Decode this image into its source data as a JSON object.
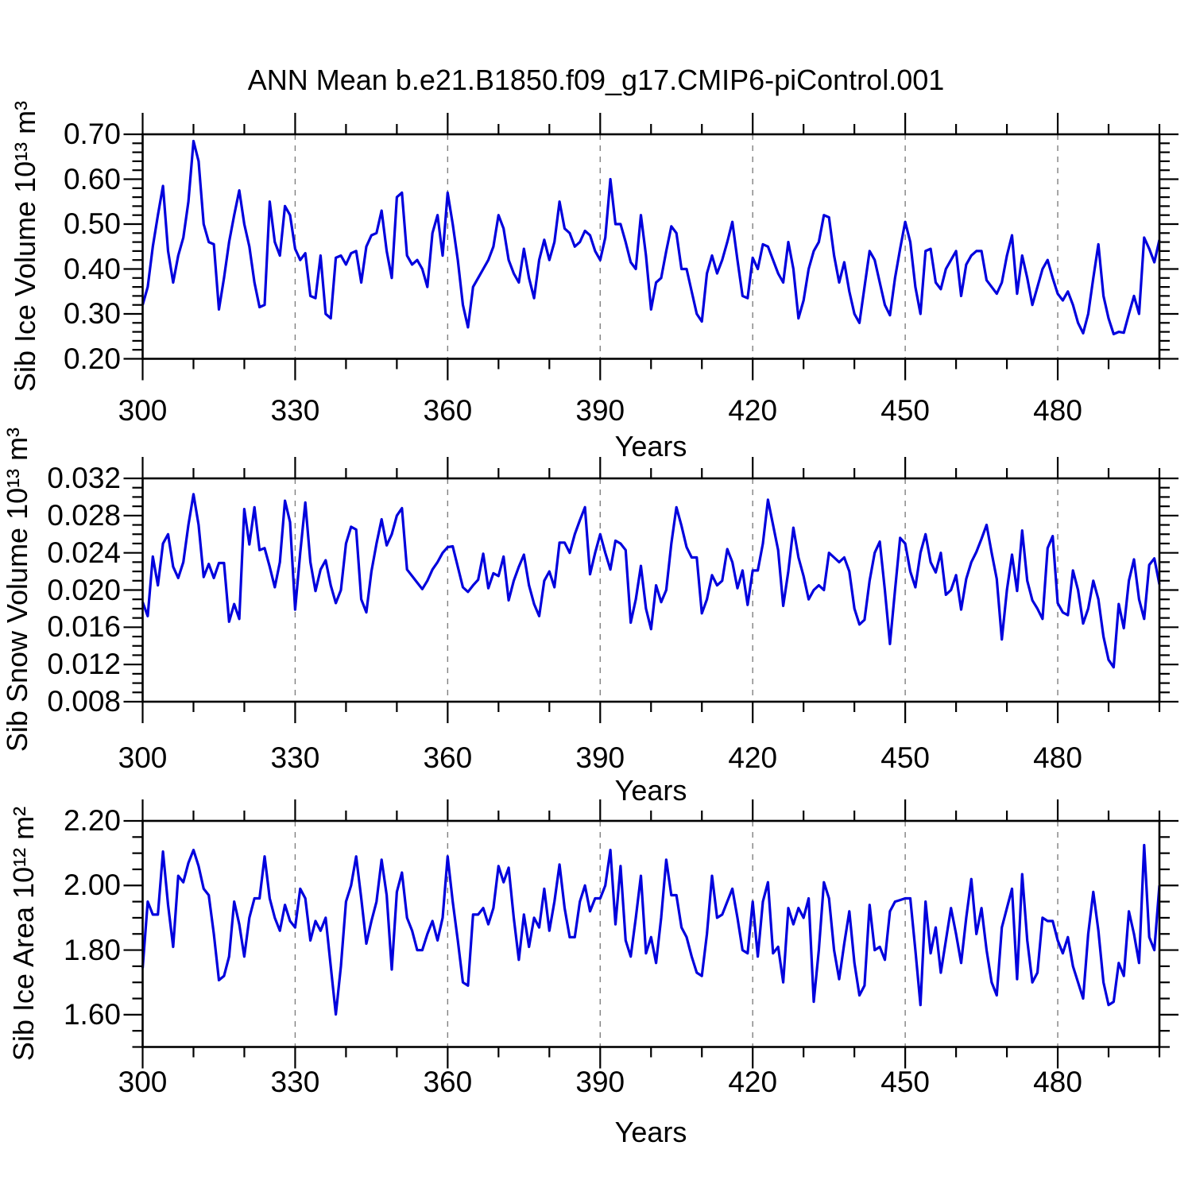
{
  "title": "ANN Mean b.e21.B1850.f09_g17.CMIP6-piControl.001",
  "line_color": "#0000dd",
  "grid_color": "#808080",
  "frame_color": "#000000",
  "chart_data": [
    {
      "type": "line",
      "name": "sib-ice-volume",
      "ylabel": "Sib Ice Volume 10¹³ m³",
      "xlabel": "Years",
      "xlim": [
        300,
        500
      ],
      "ylim": [
        0.2,
        0.7
      ],
      "x_start": 300,
      "x_step": 1,
      "x_major_ticks": [
        300,
        330,
        360,
        390,
        420,
        450,
        480
      ],
      "x_tick_labels": [
        "300",
        "330",
        "360",
        "390",
        "420",
        "450",
        "480"
      ],
      "x_minor_step": 10,
      "y_major_ticks": [
        0.2,
        0.3,
        0.4,
        0.5,
        0.6,
        0.7
      ],
      "y_tick_labels": [
        "0.20",
        "0.30",
        "0.40",
        "0.50",
        "0.60",
        "0.70"
      ],
      "y_minor_step": 0.02,
      "grid": "vertical-dashed-at-x-majors",
      "legend": "none",
      "values": [
        0.32,
        0.36,
        0.45,
        0.52,
        0.585,
        0.44,
        0.37,
        0.43,
        0.47,
        0.55,
        0.685,
        0.64,
        0.5,
        0.46,
        0.455,
        0.31,
        0.38,
        0.46,
        0.52,
        0.575,
        0.5,
        0.45,
        0.37,
        0.315,
        0.32,
        0.55,
        0.46,
        0.43,
        0.54,
        0.52,
        0.445,
        0.42,
        0.435,
        0.34,
        0.335,
        0.43,
        0.3,
        0.29,
        0.425,
        0.43,
        0.41,
        0.435,
        0.44,
        0.37,
        0.45,
        0.475,
        0.48,
        0.53,
        0.44,
        0.38,
        0.56,
        0.57,
        0.43,
        0.41,
        0.42,
        0.4,
        0.36,
        0.48,
        0.52,
        0.43,
        0.57,
        0.5,
        0.42,
        0.32,
        0.27,
        0.36,
        0.38,
        0.4,
        0.42,
        0.45,
        0.52,
        0.49,
        0.42,
        0.39,
        0.37,
        0.445,
        0.38,
        0.335,
        0.42,
        0.465,
        0.42,
        0.46,
        0.55,
        0.49,
        0.48,
        0.45,
        0.46,
        0.485,
        0.475,
        0.44,
        0.42,
        0.47,
        0.6,
        0.5,
        0.5,
        0.46,
        0.415,
        0.4,
        0.52,
        0.43,
        0.31,
        0.37,
        0.38,
        0.44,
        0.495,
        0.48,
        0.4,
        0.4,
        0.35,
        0.3,
        0.283,
        0.39,
        0.43,
        0.39,
        0.42,
        0.46,
        0.505,
        0.42,
        0.34,
        0.335,
        0.425,
        0.4,
        0.455,
        0.45,
        0.42,
        0.39,
        0.37,
        0.46,
        0.4,
        0.29,
        0.33,
        0.4,
        0.44,
        0.46,
        0.52,
        0.515,
        0.43,
        0.37,
        0.415,
        0.35,
        0.3,
        0.28,
        0.36,
        0.44,
        0.42,
        0.37,
        0.32,
        0.297,
        0.38,
        0.445,
        0.505,
        0.46,
        0.36,
        0.3,
        0.44,
        0.445,
        0.37,
        0.355,
        0.4,
        0.42,
        0.44,
        0.34,
        0.41,
        0.43,
        0.44,
        0.44,
        0.375,
        0.36,
        0.345,
        0.37,
        0.43,
        0.475,
        0.345,
        0.43,
        0.38,
        0.32,
        0.36,
        0.4,
        0.42,
        0.38,
        0.345,
        0.33,
        0.35,
        0.32,
        0.28,
        0.257,
        0.3,
        0.38,
        0.455,
        0.34,
        0.29,
        0.255,
        0.26,
        0.258,
        0.3,
        0.34,
        0.3,
        0.47,
        0.445,
        0.415,
        0.465
      ]
    },
    {
      "type": "line",
      "name": "sib-snow-volume",
      "ylabel": "Sib Snow Volume 10¹³ m³",
      "xlabel": "Years",
      "xlim": [
        300,
        500
      ],
      "ylim": [
        0.008,
        0.032
      ],
      "x_start": 300,
      "x_step": 1,
      "x_major_ticks": [
        300,
        330,
        360,
        390,
        420,
        450,
        480
      ],
      "x_tick_labels": [
        "300",
        "330",
        "360",
        "390",
        "420",
        "450",
        "480"
      ],
      "x_minor_step": 10,
      "y_major_ticks": [
        0.008,
        0.012,
        0.016,
        0.02,
        0.024,
        0.028,
        0.032
      ],
      "y_tick_labels": [
        "0.008",
        "0.012",
        "0.016",
        "0.020",
        "0.024",
        "0.028",
        "0.032"
      ],
      "y_minor_step": 0.001,
      "grid": "vertical-dashed-at-x-majors",
      "legend": "none",
      "values": [
        0.0187,
        0.0172,
        0.0236,
        0.0205,
        0.025,
        0.026,
        0.0225,
        0.0213,
        0.023,
        0.027,
        0.0303,
        0.027,
        0.0214,
        0.0228,
        0.0213,
        0.0229,
        0.0229,
        0.0166,
        0.0185,
        0.0169,
        0.0287,
        0.0249,
        0.0289,
        0.0243,
        0.0245,
        0.0225,
        0.0203,
        0.023,
        0.0296,
        0.0273,
        0.0179,
        0.024,
        0.0294,
        0.023,
        0.0199,
        0.0222,
        0.0232,
        0.0205,
        0.0186,
        0.02,
        0.025,
        0.0268,
        0.0265,
        0.019,
        0.0176,
        0.022,
        0.025,
        0.0276,
        0.0248,
        0.026,
        0.028,
        0.0288,
        0.0222,
        0.0215,
        0.0208,
        0.0201,
        0.021,
        0.0222,
        0.023,
        0.024,
        0.0246,
        0.0247,
        0.0225,
        0.0203,
        0.0198,
        0.0205,
        0.0211,
        0.0239,
        0.0202,
        0.0218,
        0.0215,
        0.0236,
        0.0189,
        0.021,
        0.0225,
        0.0238,
        0.0205,
        0.0185,
        0.0172,
        0.021,
        0.022,
        0.0203,
        0.0251,
        0.0251,
        0.024,
        0.026,
        0.0275,
        0.0289,
        0.0217,
        0.024,
        0.026,
        0.024,
        0.0222,
        0.0253,
        0.025,
        0.0243,
        0.0165,
        0.019,
        0.0226,
        0.018,
        0.0158,
        0.0205,
        0.0187,
        0.02,
        0.025,
        0.0289,
        0.0269,
        0.0246,
        0.0235,
        0.0235,
        0.0175,
        0.019,
        0.0216,
        0.0205,
        0.021,
        0.0244,
        0.023,
        0.0202,
        0.0221,
        0.0184,
        0.0221,
        0.0221,
        0.025,
        0.0297,
        0.027,
        0.0243,
        0.0183,
        0.022,
        0.0267,
        0.0235,
        0.0215,
        0.019,
        0.02,
        0.0205,
        0.02,
        0.024,
        0.0235,
        0.023,
        0.0235,
        0.022,
        0.018,
        0.0163,
        0.0168,
        0.021,
        0.024,
        0.0252,
        0.02,
        0.0142,
        0.02,
        0.0256,
        0.025,
        0.022,
        0.0203,
        0.024,
        0.026,
        0.023,
        0.0219,
        0.024,
        0.0195,
        0.02,
        0.0216,
        0.0179,
        0.0212,
        0.023,
        0.0241,
        0.0255,
        0.027,
        0.024,
        0.0212,
        0.0147,
        0.02,
        0.0238,
        0.0199,
        0.0264,
        0.021,
        0.0189,
        0.018,
        0.0169,
        0.0245,
        0.0258,
        0.0186,
        0.0176,
        0.0173,
        0.0221,
        0.02,
        0.0164,
        0.018,
        0.021,
        0.019,
        0.015,
        0.0125,
        0.0117,
        0.0185,
        0.0159,
        0.021,
        0.0233,
        0.019,
        0.0169,
        0.0227,
        0.0234,
        0.0206
      ]
    },
    {
      "type": "line",
      "name": "sib-ice-area",
      "ylabel": "Sib Ice Area 10¹² m²",
      "xlabel": "Years",
      "xlim": [
        300,
        500
      ],
      "ylim": [
        1.5,
        2.2
      ],
      "x_start": 300,
      "x_step": 1,
      "x_major_ticks": [
        300,
        330,
        360,
        390,
        420,
        450,
        480
      ],
      "x_tick_labels": [
        "300",
        "330",
        "360",
        "390",
        "420",
        "450",
        "480"
      ],
      "x_minor_step": 10,
      "y_major_ticks": [
        1.6,
        1.8,
        2.0,
        2.2
      ],
      "y_tick_labels": [
        "1.60",
        "1.80",
        "2.00",
        "2.20"
      ],
      "y_minor_step": 0.05,
      "grid": "vertical-dashed-at-x-majors",
      "legend": "none",
      "values": [
        1.744,
        1.95,
        1.91,
        1.91,
        2.105,
        1.94,
        1.81,
        2.03,
        2.01,
        2.07,
        2.11,
        2.06,
        1.99,
        1.97,
        1.85,
        1.707,
        1.72,
        1.78,
        1.95,
        1.88,
        1.78,
        1.9,
        1.96,
        1.96,
        2.09,
        1.96,
        1.9,
        1.86,
        1.94,
        1.89,
        1.87,
        1.99,
        1.96,
        1.83,
        1.89,
        1.86,
        1.9,
        1.75,
        1.601,
        1.75,
        1.95,
        2.0,
        2.09,
        1.96,
        1.82,
        1.89,
        1.95,
        2.08,
        1.97,
        1.74,
        1.98,
        2.04,
        1.9,
        1.86,
        1.8,
        1.8,
        1.85,
        1.89,
        1.83,
        1.9,
        2.09,
        1.95,
        1.83,
        1.7,
        1.69,
        1.91,
        1.91,
        1.93,
        1.88,
        1.93,
        2.06,
        2.01,
        2.055,
        1.9,
        1.77,
        1.91,
        1.81,
        1.9,
        1.87,
        1.99,
        1.86,
        1.95,
        2.065,
        1.93,
        1.84,
        1.84,
        1.95,
        2.0,
        1.92,
        1.96,
        1.96,
        2.0,
        2.11,
        1.88,
        2.06,
        1.83,
        1.78,
        1.9,
        2.03,
        1.79,
        1.84,
        1.76,
        1.9,
        2.08,
        1.97,
        1.97,
        1.87,
        1.84,
        1.78,
        1.73,
        1.72,
        1.85,
        2.03,
        1.9,
        1.91,
        1.95,
        1.99,
        1.9,
        1.8,
        1.79,
        1.95,
        1.78,
        1.95,
        2.01,
        1.79,
        1.81,
        1.7,
        1.93,
        1.88,
        1.93,
        1.9,
        1.96,
        1.64,
        1.8,
        2.01,
        1.96,
        1.8,
        1.71,
        1.82,
        1.92,
        1.76,
        1.66,
        1.69,
        1.94,
        1.8,
        1.81,
        1.77,
        1.92,
        1.95,
        1.955,
        1.96,
        1.96,
        1.8,
        1.63,
        1.95,
        1.79,
        1.87,
        1.73,
        1.83,
        1.93,
        1.85,
        1.76,
        1.9,
        2.02,
        1.85,
        1.93,
        1.8,
        1.7,
        1.66,
        1.87,
        1.93,
        1.99,
        1.71,
        2.035,
        1.83,
        1.7,
        1.73,
        1.9,
        1.89,
        1.89,
        1.83,
        1.79,
        1.84,
        1.75,
        1.7,
        1.65,
        1.85,
        1.98,
        1.86,
        1.7,
        1.63,
        1.64,
        1.76,
        1.72,
        1.92,
        1.85,
        1.76,
        2.125,
        1.84,
        1.8,
        2.0
      ]
    }
  ]
}
